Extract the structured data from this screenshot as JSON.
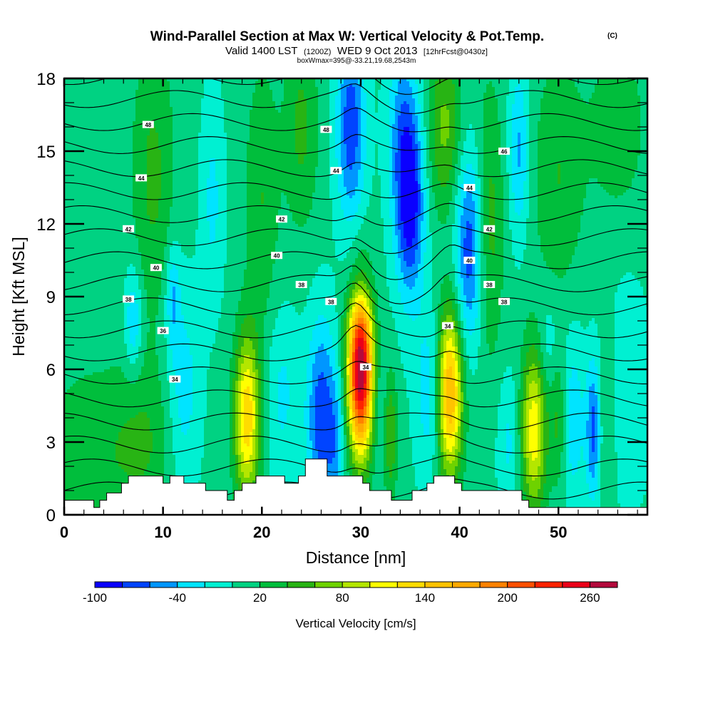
{
  "chart_data": {
    "type": "heatmap",
    "title": "Wind-Parallel Section at Max W: Vertical Velocity & Pot.Temp.",
    "title_mark": "(C)",
    "subtitle_parts": [
      "Valid 1400 LST",
      "(1200Z)",
      "WED 9 Oct 2013",
      "[12hrFcst@0430z]"
    ],
    "subtitle2": "boxWmax=395@-33.21,19.68,2543m",
    "xlabel": "Distance [nm]",
    "ylabel": "Height [Kft MSL]",
    "xlim": [
      0,
      59
    ],
    "ylim": [
      0,
      18
    ],
    "xticks": [
      0,
      10,
      20,
      30,
      40,
      50
    ],
    "xtick_labels": [
      "0",
      "10",
      "20",
      "30",
      "40",
      "50"
    ],
    "yticks": [
      0,
      3,
      6,
      9,
      12,
      15,
      18
    ],
    "ytick_labels": [
      "0",
      "3",
      "6",
      "9",
      "12",
      "15",
      "18"
    ],
    "colorbar": {
      "label": "Vertical Velocity [cm/s]",
      "levels": [
        -100,
        -80,
        -60,
        -40,
        -20,
        0,
        20,
        40,
        60,
        80,
        100,
        120,
        140,
        160,
        180,
        200,
        220,
        240,
        260,
        280
      ],
      "tick_labels": [
        "-100",
        "-40",
        "20",
        "80",
        "140",
        "200",
        "260"
      ],
      "tick_values": [
        -100,
        -40,
        20,
        80,
        140,
        200,
        260
      ],
      "colors": [
        "#0a00ff",
        "#0044ff",
        "#0096ff",
        "#00e4ff",
        "#00f0d2",
        "#00d282",
        "#00be3c",
        "#28b414",
        "#6ed200",
        "#b4e600",
        "#ffff00",
        "#ffdc00",
        "#ffc300",
        "#ffaa00",
        "#ff8200",
        "#ff5000",
        "#ff2300",
        "#eb0019",
        "#b40a3c"
      ]
    },
    "updraft_maxima": [
      {
        "x_nm": 30,
        "height_kft": 6.0,
        "w_cms": 280
      },
      {
        "x_nm": 39,
        "height_kft": 5.0,
        "w_cms": 160
      },
      {
        "x_nm": 18.5,
        "height_kft": 4.0,
        "w_cms": 130
      },
      {
        "x_nm": 47.5,
        "height_kft": 3.5,
        "w_cms": 110
      }
    ],
    "downdraft_minima": [
      {
        "x_nm": 35,
        "height_kft": 13,
        "w_cms": -100
      },
      {
        "x_nm": 29,
        "height_kft": 16,
        "w_cms": -80
      },
      {
        "x_nm": 26,
        "height_kft": 4,
        "w_cms": -80
      },
      {
        "x_nm": 41,
        "height_kft": 11,
        "w_cms": -80
      }
    ],
    "theta_contours": {
      "units": "pot. temp",
      "labels": [
        {
          "text": "48",
          "x_nm": 8.5,
          "height_kft": 16.1
        },
        {
          "text": "48",
          "x_nm": 26.5,
          "height_kft": 15.9
        },
        {
          "text": "46",
          "x_nm": 44.5,
          "height_kft": 15.0
        },
        {
          "text": "44",
          "x_nm": 7.8,
          "height_kft": 13.9
        },
        {
          "text": "44",
          "x_nm": 27.5,
          "height_kft": 14.2
        },
        {
          "text": "44",
          "x_nm": 41.0,
          "height_kft": 13.5
        },
        {
          "text": "42",
          "x_nm": 6.5,
          "height_kft": 11.8
        },
        {
          "text": "42",
          "x_nm": 22.0,
          "height_kft": 12.2
        },
        {
          "text": "42",
          "x_nm": 43.0,
          "height_kft": 11.8
        },
        {
          "text": "40",
          "x_nm": 9.3,
          "height_kft": 10.2
        },
        {
          "text": "40",
          "x_nm": 21.5,
          "height_kft": 10.7
        },
        {
          "text": "40",
          "x_nm": 41.0,
          "height_kft": 10.5
        },
        {
          "text": "38",
          "x_nm": 6.5,
          "height_kft": 8.9
        },
        {
          "text": "38",
          "x_nm": 24.0,
          "height_kft": 9.5
        },
        {
          "text": "38",
          "x_nm": 27.0,
          "height_kft": 8.8
        },
        {
          "text": "38",
          "x_nm": 43.0,
          "height_kft": 9.5
        },
        {
          "text": "38",
          "x_nm": 44.5,
          "height_kft": 8.8
        },
        {
          "text": "36",
          "x_nm": 10.0,
          "height_kft": 7.6
        },
        {
          "text": "34",
          "x_nm": 11.2,
          "height_kft": 5.6
        },
        {
          "text": "34",
          "x_nm": 30.5,
          "height_kft": 6.1
        },
        {
          "text": "34",
          "x_nm": 38.8,
          "height_kft": 7.8
        }
      ]
    },
    "terrain_kft": [
      [
        0,
        0.6
      ],
      [
        3,
        0.6
      ],
      [
        3,
        0.3
      ],
      [
        3.6,
        0.3
      ],
      [
        3.6,
        0.6
      ],
      [
        4.3,
        0.6
      ],
      [
        4.3,
        0.9
      ],
      [
        5.8,
        0.9
      ],
      [
        5.8,
        1.3
      ],
      [
        6.5,
        1.3
      ],
      [
        6.5,
        1.6
      ],
      [
        10.0,
        1.6
      ],
      [
        10.0,
        1.3
      ],
      [
        10.7,
        1.3
      ],
      [
        10.7,
        1.6
      ],
      [
        12.1,
        1.6
      ],
      [
        12.1,
        1.3
      ],
      [
        14.3,
        1.3
      ],
      [
        14.3,
        1.0
      ],
      [
        16.5,
        1.0
      ],
      [
        16.5,
        0.6
      ],
      [
        17.2,
        0.6
      ],
      [
        17.2,
        1.0
      ],
      [
        18.0,
        1.0
      ],
      [
        18.0,
        1.3
      ],
      [
        19.4,
        1.3
      ],
      [
        19.4,
        1.6
      ],
      [
        22.3,
        1.6
      ],
      [
        22.3,
        1.3
      ],
      [
        23.7,
        1.3
      ],
      [
        23.7,
        1.6
      ],
      [
        24.4,
        1.6
      ],
      [
        24.4,
        2.3
      ],
      [
        26.6,
        2.3
      ],
      [
        26.6,
        1.6
      ],
      [
        30.2,
        1.6
      ],
      [
        30.2,
        1.3
      ],
      [
        30.9,
        1.3
      ],
      [
        30.9,
        1.0
      ],
      [
        33.1,
        1.0
      ],
      [
        33.1,
        0.6
      ],
      [
        35.2,
        0.6
      ],
      [
        35.2,
        1.0
      ],
      [
        36.7,
        1.0
      ],
      [
        36.7,
        1.3
      ],
      [
        37.4,
        1.3
      ],
      [
        37.4,
        1.6
      ],
      [
        39.5,
        1.6
      ],
      [
        39.5,
        1.3
      ],
      [
        40.2,
        1.3
      ],
      [
        40.2,
        1.0
      ],
      [
        46.3,
        1.0
      ],
      [
        46.3,
        0.6
      ],
      [
        47.0,
        0.6
      ],
      [
        47.0,
        0.3
      ],
      [
        59,
        0.3
      ]
    ]
  },
  "colors": {
    "terrain": "#ffffff",
    "contour": "#000000",
    "frame": "#000000"
  }
}
